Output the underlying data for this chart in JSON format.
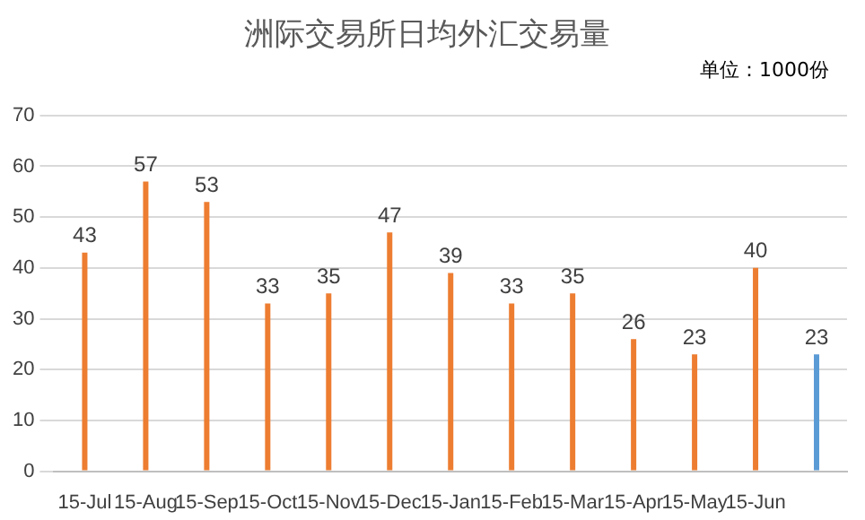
{
  "chart_data": {
    "type": "bar",
    "title": "洲际交易所日均外汇交易量",
    "annotations": [
      "单位：1000份"
    ],
    "categories": [
      "15-Jul",
      "15-Aug",
      "15-Sep",
      "15-Oct",
      "15-Nov",
      "15-Dec",
      "15-Jan",
      "15-Feb",
      "15-Mar",
      "15-Apr",
      "15-May",
      "15-Jun",
      null
    ],
    "values": [
      43,
      57,
      53,
      33,
      35,
      47,
      39,
      33,
      35,
      26,
      23,
      40,
      23
    ],
    "colors": [
      "#ed7d31",
      "#ed7d31",
      "#ed7d31",
      "#ed7d31",
      "#ed7d31",
      "#ed7d31",
      "#ed7d31",
      "#ed7d31",
      "#ed7d31",
      "#ed7d31",
      "#ed7d31",
      "#ed7d31",
      "#5b9bd5"
    ],
    "ylim": [
      0,
      70
    ],
    "yticks": [
      0,
      10,
      20,
      30,
      40,
      50,
      60,
      70
    ],
    "grid": "y",
    "data_labels": true
  }
}
